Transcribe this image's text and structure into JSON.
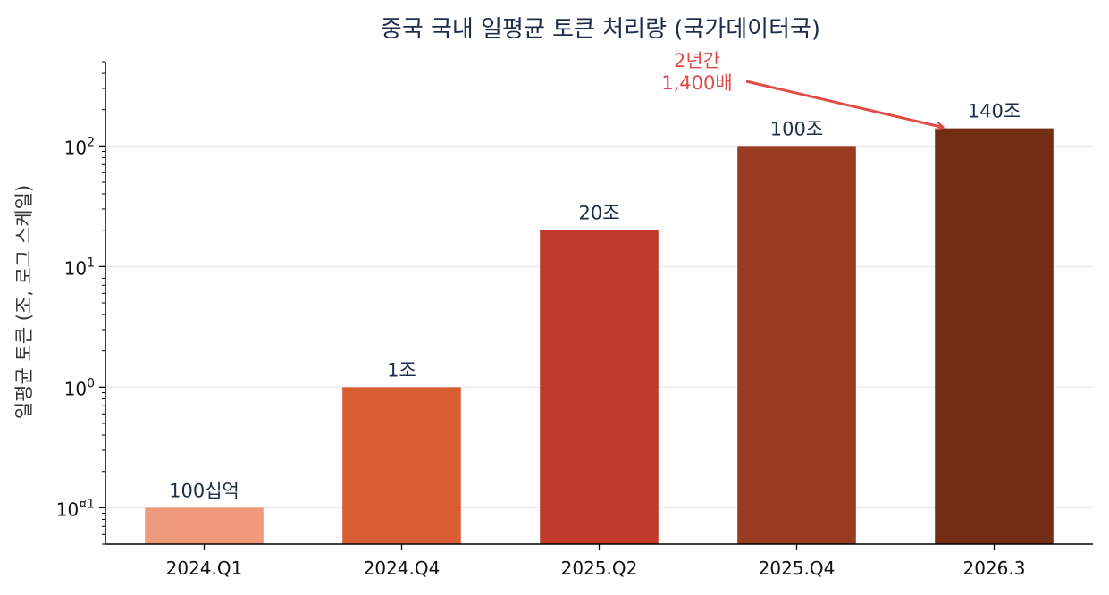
{
  "chart_data": {
    "type": "bar",
    "title": "중국 국내 일평균 토큰 처리량 (국가데이터국)",
    "xlabel": "",
    "ylabel": "일평균 토큰 (조, 로그 스케일)",
    "y_scale": "log",
    "ylim": [
      0.05,
      500
    ],
    "grid": "horizontal major gridlines",
    "categories": [
      "2024.Q1",
      "2024.Q4",
      "2025.Q2",
      "2025.Q4",
      "2026.3"
    ],
    "values": [
      0.1,
      1,
      20,
      100,
      140
    ],
    "data_labels": [
      "100십억",
      "1조",
      "20조",
      "100조",
      "140조"
    ],
    "y_ticks": [
      {
        "value": 0.1,
        "base": "10",
        "exp": "¤1"
      },
      {
        "value": 1,
        "base": "10",
        "exp": "0"
      },
      {
        "value": 10,
        "base": "10",
        "exp": "1"
      },
      {
        "value": 100,
        "base": "10",
        "exp": "2"
      }
    ],
    "bar_colors": [
      "#ee9a7b",
      "#d95d33",
      "#c0392b",
      "#983b1e",
      "#722d14"
    ],
    "annotation": {
      "lines": [
        "2년간",
        "1,400배"
      ],
      "target_category": "2026.3",
      "target_value": 140,
      "color": "#e04b45"
    }
  }
}
